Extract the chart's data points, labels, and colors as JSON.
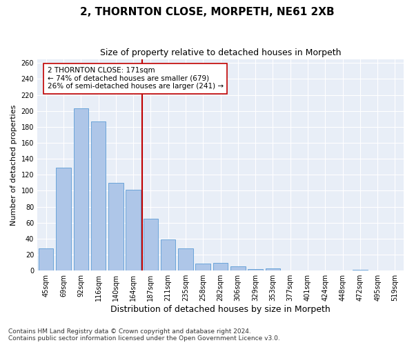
{
  "title": "2, THORNTON CLOSE, MORPETH, NE61 2XB",
  "subtitle": "Size of property relative to detached houses in Morpeth",
  "xlabel": "Distribution of detached houses by size in Morpeth",
  "ylabel": "Number of detached properties",
  "categories": [
    "45sqm",
    "69sqm",
    "92sqm",
    "116sqm",
    "140sqm",
    "164sqm",
    "187sqm",
    "211sqm",
    "235sqm",
    "258sqm",
    "282sqm",
    "306sqm",
    "329sqm",
    "353sqm",
    "377sqm",
    "401sqm",
    "424sqm",
    "448sqm",
    "472sqm",
    "495sqm",
    "519sqm"
  ],
  "values": [
    28,
    129,
    203,
    187,
    110,
    101,
    65,
    39,
    28,
    9,
    10,
    5,
    2,
    3,
    0,
    0,
    0,
    0,
    1,
    0,
    0
  ],
  "bar_color": "#aec6e8",
  "bar_edge_color": "#5b9bd5",
  "vline_color": "#c00000",
  "annotation_text": "2 THORNTON CLOSE: 171sqm\n← 74% of detached houses are smaller (679)\n26% of semi-detached houses are larger (241) →",
  "annotation_box_color": "#ffffff",
  "annotation_box_edge_color": "#c00000",
  "footer_line1": "Contains HM Land Registry data © Crown copyright and database right 2024.",
  "footer_line2": "Contains public sector information licensed under the Open Government Licence v3.0.",
  "ylim": [
    0,
    265
  ],
  "yticks": [
    0,
    20,
    40,
    60,
    80,
    100,
    120,
    140,
    160,
    180,
    200,
    220,
    240,
    260
  ],
  "bg_color": "#e8eef7",
  "fig_bg_color": "#ffffff",
  "grid_color": "#ffffff",
  "title_fontsize": 11,
  "subtitle_fontsize": 9,
  "xlabel_fontsize": 9,
  "ylabel_fontsize": 8,
  "tick_fontsize": 7,
  "annotation_fontsize": 7.5,
  "footer_fontsize": 6.5
}
